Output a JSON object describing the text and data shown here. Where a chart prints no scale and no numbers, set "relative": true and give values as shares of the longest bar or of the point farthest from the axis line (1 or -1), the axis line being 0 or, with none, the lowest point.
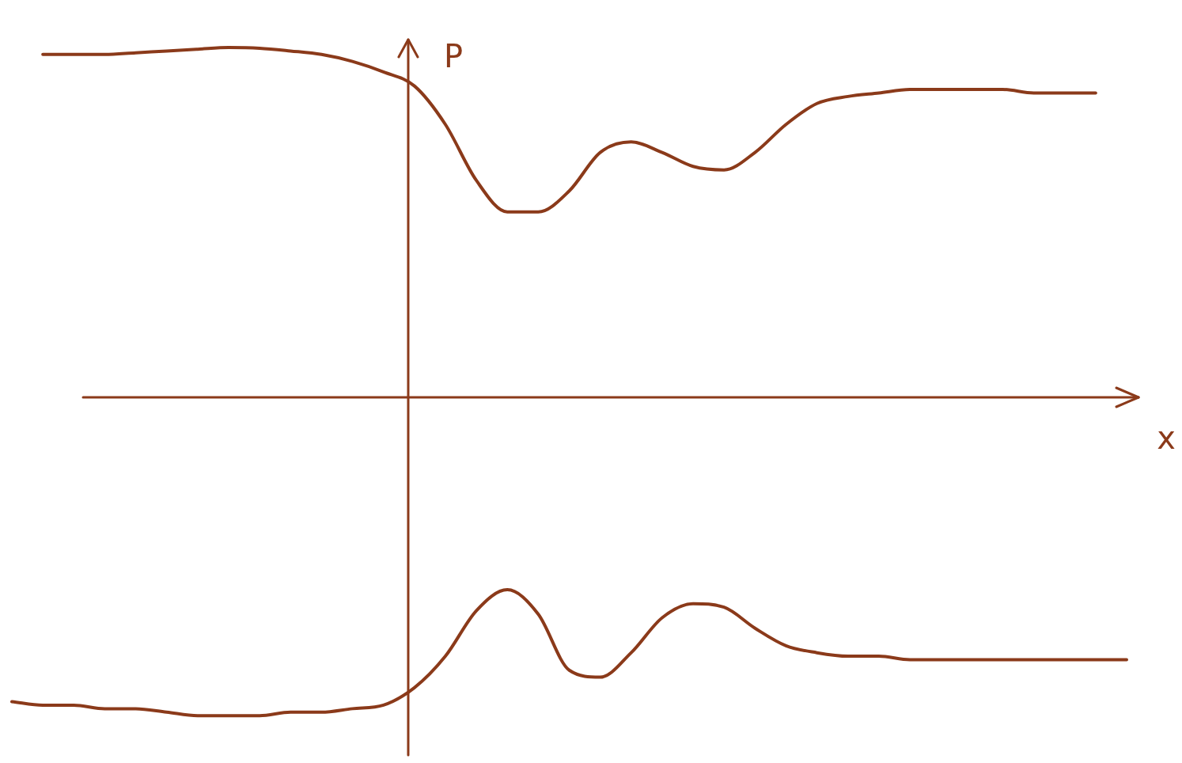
{
  "chart_data": {
    "type": "line",
    "relative": true,
    "xlabel": "x",
    "ylabel": "P",
    "marker": "none",
    "line_style": "solid",
    "legend": false,
    "ref_lines": [
      {
        "axis": "y",
        "value": 0
      }
    ],
    "categories": [
      null,
      null,
      null,
      null,
      null,
      null,
      null,
      null,
      null,
      null,
      null,
      null,
      null,
      null,
      null,
      null,
      null,
      null,
      null,
      null,
      null,
      null,
      null,
      null,
      null,
      null,
      null,
      null,
      null,
      null,
      null,
      null,
      null,
      null,
      null,
      null,
      null
    ],
    "series": [
      {
        "color": "#8b3a1a",
        "values": [
          null,
          0.98,
          0.98,
          0.98,
          0.985,
          0.99,
          0.995,
          1.0,
          0.998,
          0.99,
          0.98,
          0.96,
          0.93,
          0.89,
          0.78,
          0.62,
          0.53,
          0.53,
          0.59,
          0.7,
          0.73,
          0.7,
          0.66,
          0.65,
          0.7,
          0.78,
          0.84,
          0.86,
          0.87,
          0.88,
          0.88,
          0.88,
          0.88,
          0.87,
          0.87,
          0.87,
          null
        ]
      },
      {
        "color": "#8b3a1a",
        "values": [
          -0.87,
          -0.88,
          -0.88,
          -0.89,
          -0.89,
          -0.9,
          -0.91,
          -0.91,
          -0.91,
          -0.9,
          -0.9,
          -0.89,
          -0.88,
          -0.83,
          -0.74,
          -0.61,
          -0.55,
          -0.62,
          -0.78,
          -0.8,
          -0.73,
          -0.63,
          -0.59,
          -0.6,
          -0.66,
          -0.71,
          -0.73,
          -0.74,
          -0.74,
          -0.75,
          -0.75,
          -0.75,
          -0.75,
          -0.75,
          -0.75,
          -0.75,
          -0.75
        ]
      }
    ]
  }
}
